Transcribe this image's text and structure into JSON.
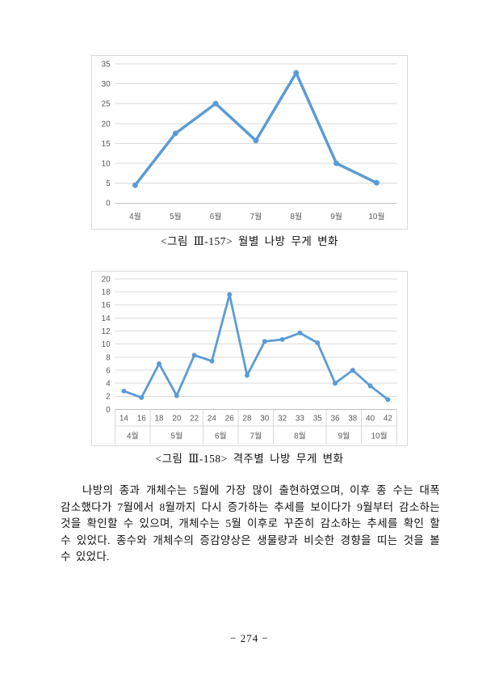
{
  "page": {
    "number_label": "− 274 −",
    "background_color": "#ffffff"
  },
  "figures": [
    {
      "caption": "<그림 Ⅲ-157> 월별 나방 무게 변화"
    },
    {
      "caption": "<그림 Ⅲ-158> 격주별 나방 무게 변화"
    }
  ],
  "paragraph": {
    "text": "나방의 종과 개체수는 5월에 가장 많이 출현하였으며, 이후 종 수는 대폭 감소했다가 7월에서 8월까지 다시 증가하는 추세를 보이다가 9월부터 감소하는 것을 확인할 수 있으며, 개체수는 5월 이후로 꾸준히 감소하는 추세를 확인 할 수 있었다. 종수와 개체수의 증감양상은 생물량과 비슷한 경향을 띠는 것을 볼 수 있었다."
  },
  "chart_data": [
    {
      "type": "line",
      "title": "",
      "xlabel": "",
      "ylabel": "",
      "categories": [
        "4월",
        "5월",
        "6월",
        "7월",
        "8월",
        "9월",
        "10월"
      ],
      "values": [
        4.5,
        17.5,
        25.0,
        15.7,
        32.7,
        10.0,
        5.1
      ],
      "ylim": [
        0,
        35
      ],
      "ytick_step": 5,
      "grid": true,
      "legend": "none",
      "line_color": "#5b9bd5",
      "grid_color": "#d9d9d9",
      "axis_line_color": "#bfbfbf",
      "tick_label_color": "#595959"
    },
    {
      "type": "line",
      "title": "",
      "xlabel": "",
      "ylabel": "",
      "categories": [
        "14",
        "16",
        "18",
        "20",
        "22",
        "24",
        "26",
        "28",
        "30",
        "32",
        "33",
        "35",
        "36",
        "38",
        "40",
        "42"
      ],
      "values": [
        2.8,
        1.8,
        7.0,
        2.1,
        8.3,
        7.4,
        17.6,
        5.2,
        10.4,
        10.7,
        11.7,
        10.2,
        4.0,
        6.0,
        3.6,
        1.5
      ],
      "month_groups": [
        {
          "label": "4월",
          "span": 2
        },
        {
          "label": "5월",
          "span": 3
        },
        {
          "label": "6월",
          "span": 2
        },
        {
          "label": "7월",
          "span": 2
        },
        {
          "label": "8월",
          "span": 3
        },
        {
          "label": "9월",
          "span": 2
        },
        {
          "label": "10월",
          "span": 2
        }
      ],
      "ylim": [
        0,
        20
      ],
      "ytick_step": 2,
      "grid": true,
      "legend": "none",
      "line_color": "#5b9bd5",
      "grid_color": "#d9d9d9",
      "axis_line_color": "#bfbfbf",
      "tick_label_color": "#595959"
    }
  ]
}
